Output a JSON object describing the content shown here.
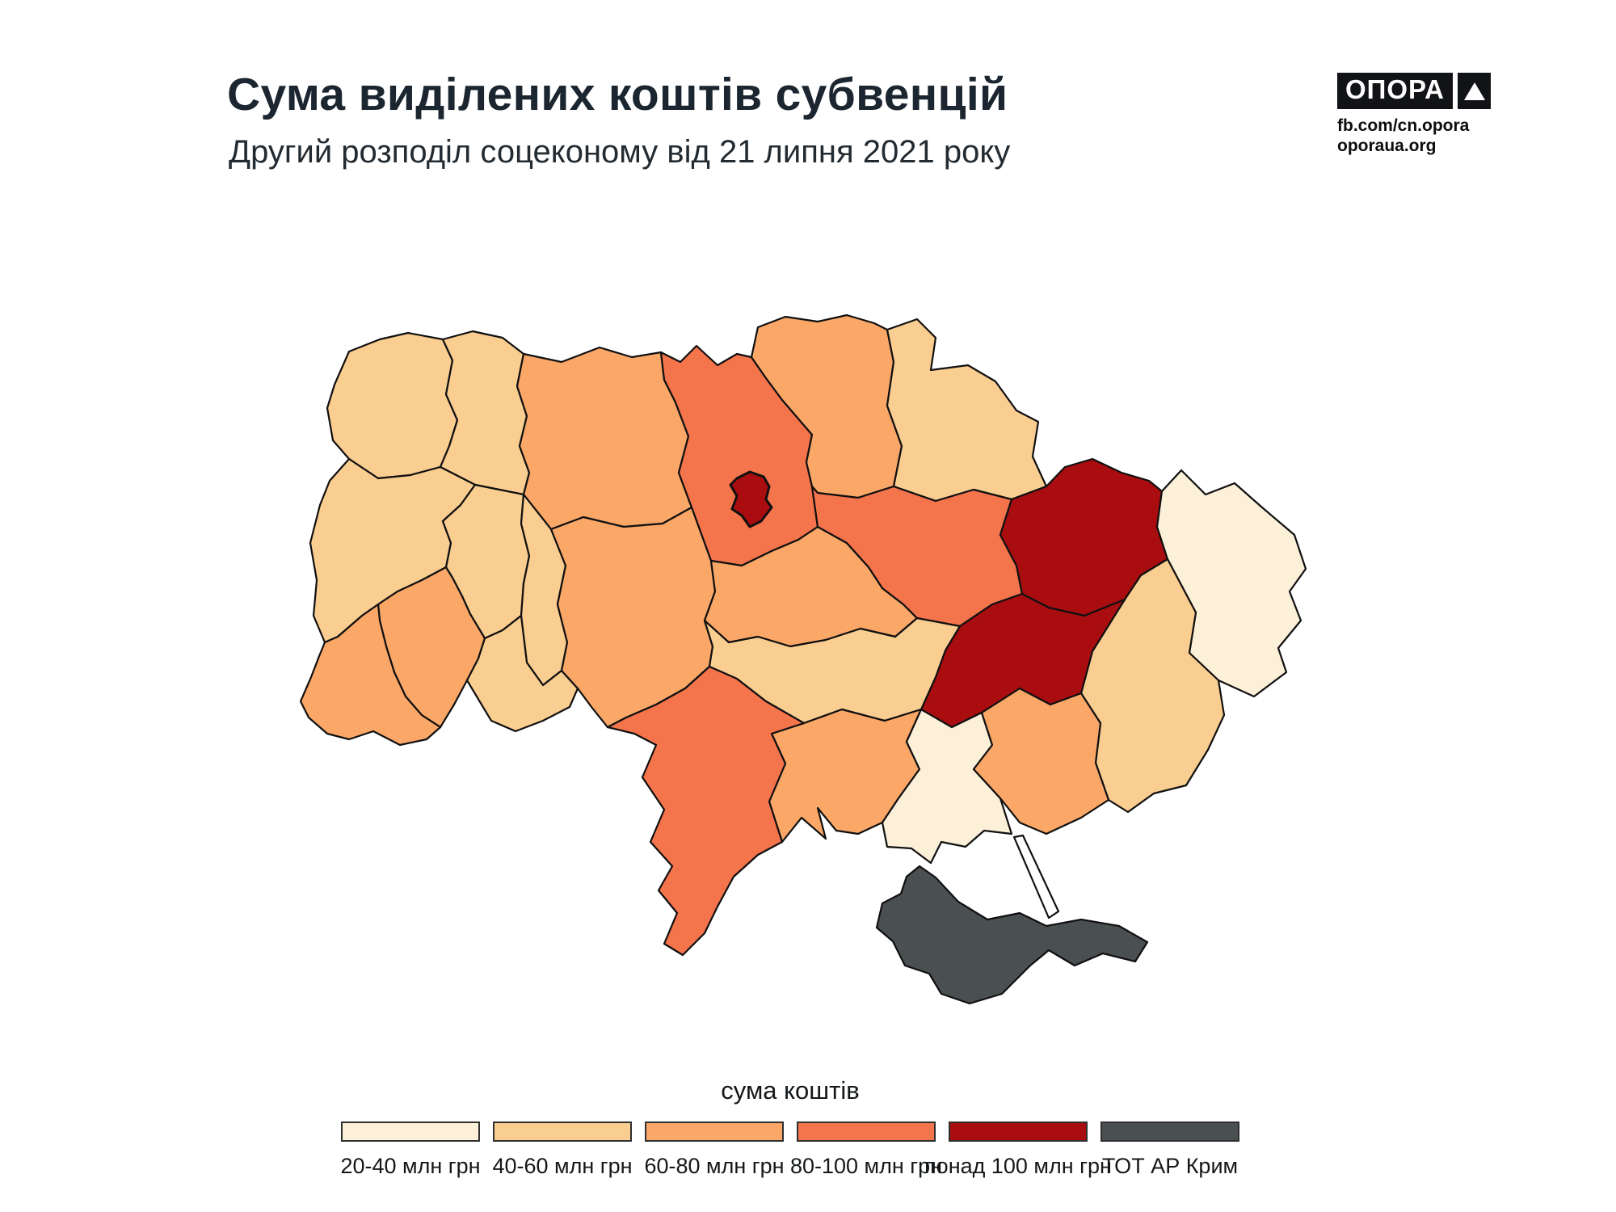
{
  "header": {
    "title": "Сума виділених коштів субвенцій",
    "subtitle": "Другий розподіл соцеконому від 21 липня 2021 року"
  },
  "logo": {
    "brand": "ОПОРА",
    "links": [
      "fb.com/cn.opora",
      "oporaua.org"
    ]
  },
  "legend": {
    "title": "сума коштів",
    "items": [
      {
        "label": "20-40 млн грн",
        "color": "#FCF0D9"
      },
      {
        "label": "40-60 млн грн",
        "color": "#FACD90"
      },
      {
        "label": "60-80 млн грн",
        "color": "#FAA768"
      },
      {
        "label": "80-100 млн грн",
        "color": "#F4744C"
      },
      {
        "label": "понад 100 млн грн",
        "color": "#A90D10"
      },
      {
        "label": "ТОТ АР Крим",
        "color": "#4A4F52"
      }
    ]
  },
  "map": {
    "stroke": "#101010",
    "regions": [
      {
        "id": "volyn",
        "name": "Волинська",
        "bucket": "40-60 млн грн",
        "color": "#FACD90"
      },
      {
        "id": "rivne",
        "name": "Рівненська",
        "bucket": "40-60 млн грн",
        "color": "#FACD90"
      },
      {
        "id": "zhytomyr",
        "name": "Житомирська",
        "bucket": "60-80 млн грн",
        "color": "#FAA768"
      },
      {
        "id": "kyiv-oblast",
        "name": "Київська",
        "bucket": "80-100 млн грн",
        "color": "#F4744C"
      },
      {
        "id": "kyiv-city",
        "name": "м. Київ",
        "bucket": "понад 100 млн грн",
        "color": "#A90D10"
      },
      {
        "id": "chernihiv",
        "name": "Чернігівська",
        "bucket": "60-80 млн грн",
        "color": "#FAA768"
      },
      {
        "id": "sumy",
        "name": "Сумська",
        "bucket": "40-60 млн грн",
        "color": "#FACD90"
      },
      {
        "id": "lviv",
        "name": "Львівська",
        "bucket": "40-60 млн грн",
        "color": "#FACD90"
      },
      {
        "id": "ternopil",
        "name": "Тернопільська",
        "bucket": "40-60 млн грн",
        "color": "#FACD90"
      },
      {
        "id": "khmelnytskyi",
        "name": "Хмельницька",
        "bucket": "40-60 млн грн",
        "color": "#FACD90"
      },
      {
        "id": "ivano-frankivsk",
        "name": "Івано-Франківська",
        "bucket": "60-80 млн грн",
        "color": "#FAA768"
      },
      {
        "id": "zakarpattia",
        "name": "Закарпатська",
        "bucket": "60-80 млн грн",
        "color": "#FAA768"
      },
      {
        "id": "chernivtsi",
        "name": "Чернівецька",
        "bucket": "40-60 млн грн",
        "color": "#FACD90"
      },
      {
        "id": "vinnytsia",
        "name": "Вінницька",
        "bucket": "60-80 млн грн",
        "color": "#FAA768"
      },
      {
        "id": "cherkasy",
        "name": "Черкаська",
        "bucket": "60-80 млн грн",
        "color": "#FAA768"
      },
      {
        "id": "poltava",
        "name": "Полтавська",
        "bucket": "80-100 млн грн",
        "color": "#F4744C"
      },
      {
        "id": "kharkiv",
        "name": "Харківська",
        "bucket": "понад 100 млн грн",
        "color": "#A90D10"
      },
      {
        "id": "luhansk",
        "name": "Луганська",
        "bucket": "20-40 млн грн",
        "color": "#FCF0D9"
      },
      {
        "id": "donetsk",
        "name": "Донецька",
        "bucket": "40-60 млн грн",
        "color": "#FACD90"
      },
      {
        "id": "dnipropetrovsk",
        "name": "Дніпропетровська",
        "bucket": "понад 100 млн грн",
        "color": "#A90D10"
      },
      {
        "id": "kirovohrad",
        "name": "Кіровоградська",
        "bucket": "40-60 млн грн",
        "color": "#FACD90"
      },
      {
        "id": "mykolaiv",
        "name": "Миколаївська",
        "bucket": "60-80 млн грн",
        "color": "#FAA768"
      },
      {
        "id": "odesa",
        "name": "Одеська",
        "bucket": "80-100 млн грн",
        "color": "#F4744C"
      },
      {
        "id": "kherson",
        "name": "Херсонська",
        "bucket": "20-40 млн грн",
        "color": "#FCF0D9"
      },
      {
        "id": "zaporizhzhia",
        "name": "Запорізька",
        "bucket": "60-80 млн грн",
        "color": "#FAA768"
      },
      {
        "id": "crimea",
        "name": "ТОТ АР Крим",
        "bucket": "ТОТ АР Крим",
        "color": "#4A4F52"
      }
    ]
  },
  "chart_data": {
    "type": "choropleth",
    "title": "Сума виділених коштів субвенцій",
    "subtitle": "Другий розподіл соцеконому від 21 липня 2021 року",
    "unit": "млн грн",
    "legend_title": "сума коштів",
    "buckets": [
      "20-40 млн грн",
      "40-60 млн грн",
      "60-80 млн грн",
      "80-100 млн грн",
      "понад 100 млн грн",
      "ТОТ АР Крим"
    ],
    "values": {
      "Волинська": "40-60 млн грн",
      "Рівненська": "40-60 млн грн",
      "Житомирська": "60-80 млн грн",
      "Київська": "80-100 млн грн",
      "м. Київ": "понад 100 млн грн",
      "Чернігівська": "60-80 млн грн",
      "Сумська": "40-60 млн грн",
      "Львівська": "40-60 млн грн",
      "Тернопільська": "40-60 млн грн",
      "Хмельницька": "40-60 млн грн",
      "Івано-Франківська": "60-80 млн грн",
      "Закарпатська": "60-80 млн грн",
      "Чернівецька": "40-60 млн грн",
      "Вінницька": "60-80 млн грн",
      "Черкаська": "60-80 млн грн",
      "Полтавська": "80-100 млн грн",
      "Харківська": "понад 100 млн грн",
      "Луганська": "20-40 млн грн",
      "Донецька": "40-60 млн грн",
      "Дніпропетровська": "понад 100 млн грн",
      "Кіровоградська": "40-60 млн грн",
      "Миколаївська": "60-80 млн грн",
      "Одеська": "80-100 млн грн",
      "Херсонська": "20-40 млн грн",
      "Запорізька": "60-80 млн грн",
      "ТОТ АР Крим": "ТОТ АР Крим"
    }
  }
}
